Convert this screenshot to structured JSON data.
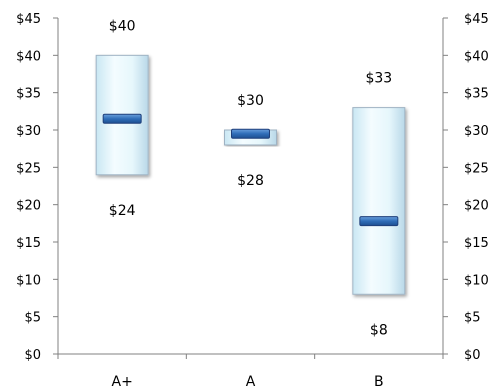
{
  "chart_data": {
    "type": "bar",
    "subtype": "floating-range-with-marker",
    "title": "",
    "xlabel": "",
    "ylabel": "",
    "categories": [
      "A+",
      "A",
      "B"
    ],
    "series": [
      {
        "low": [
          24,
          28,
          8
        ],
        "high": [
          40,
          30,
          33
        ],
        "marker": [
          31.5,
          29.5,
          17.8
        ]
      }
    ],
    "low_labels": [
      "$24",
      "$28",
      "$8"
    ],
    "high_labels": [
      "$40",
      "$30",
      "$33"
    ],
    "ylim": [
      0,
      45
    ],
    "y_ticks": [
      0,
      5,
      10,
      15,
      20,
      25,
      30,
      35,
      40,
      45
    ],
    "y_tick_labels": [
      "$0",
      "$5",
      "$10",
      "$15",
      "$20",
      "$25",
      "$30",
      "$35",
      "$40",
      "$45"
    ],
    "secondary_y_axis": true,
    "grid": false,
    "legend": "none",
    "colors": {
      "range_fill": "#e4f6fc",
      "range_edge": "#9fb3c4",
      "marker_fill": "#2f6db8",
      "marker_edge": "#1f3f7a",
      "axis": "#808080"
    }
  }
}
